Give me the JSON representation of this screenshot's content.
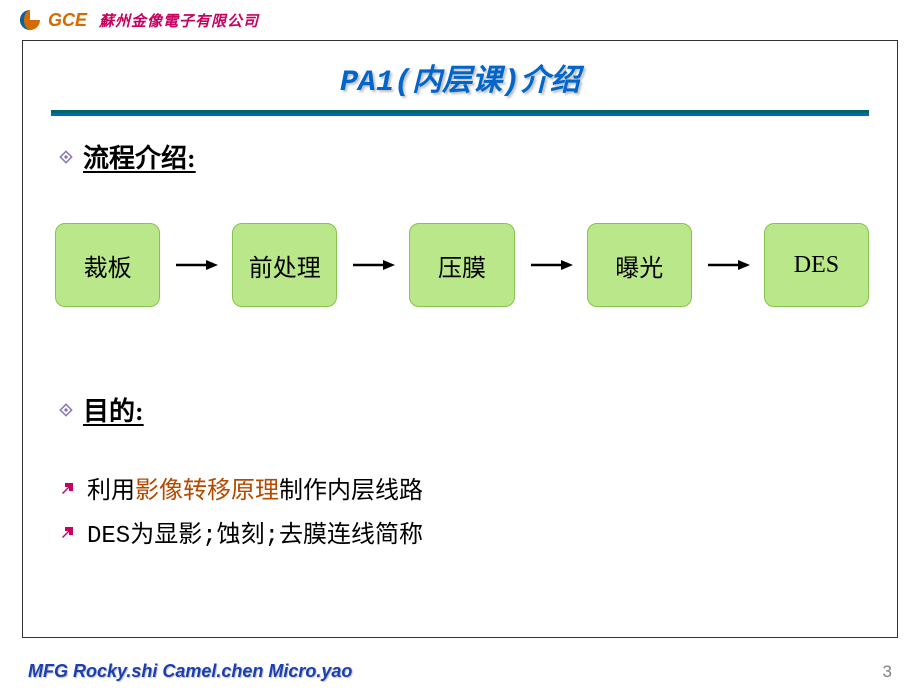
{
  "header": {
    "logo_text": "GCE",
    "logo_text_color": "#d46a00",
    "company_name": "蘇州金像電子有限公司",
    "company_name_color": "#c80060"
  },
  "slide": {
    "title": "PA1(内层课)介绍",
    "title_color": "#0066cc",
    "title_underline_top": "#006666",
    "title_underline_bottom": "#0066cc",
    "section1_label": "流程介绍:",
    "section2_label": "目的:",
    "bullet_diamond_color": "#8a74b8",
    "bullet_arrow_color": "#c80060",
    "flow": {
      "nodes": [
        "裁板",
        "前处理",
        "压膜",
        "曝光",
        "DES"
      ],
      "node_fill": "#b9e78a",
      "node_border": "#86c34e",
      "arrow_color": "#000000"
    },
    "body_lines": [
      {
        "segments": [
          {
            "text": "利用",
            "color": "#000000"
          },
          {
            "text": "影像转移原理",
            "color": "#b44a00"
          },
          {
            "text": "制作内层线路",
            "color": "#000000"
          }
        ]
      },
      {
        "segments": [
          {
            "text": "DES为显影;蚀刻;去膜连线简称",
            "color": "#000000"
          }
        ]
      }
    ]
  },
  "footer": {
    "authors": "MFG Rocky.shi  Camel.chen  Micro.yao",
    "authors_color": "#1a3fb0",
    "page_number": "3"
  }
}
